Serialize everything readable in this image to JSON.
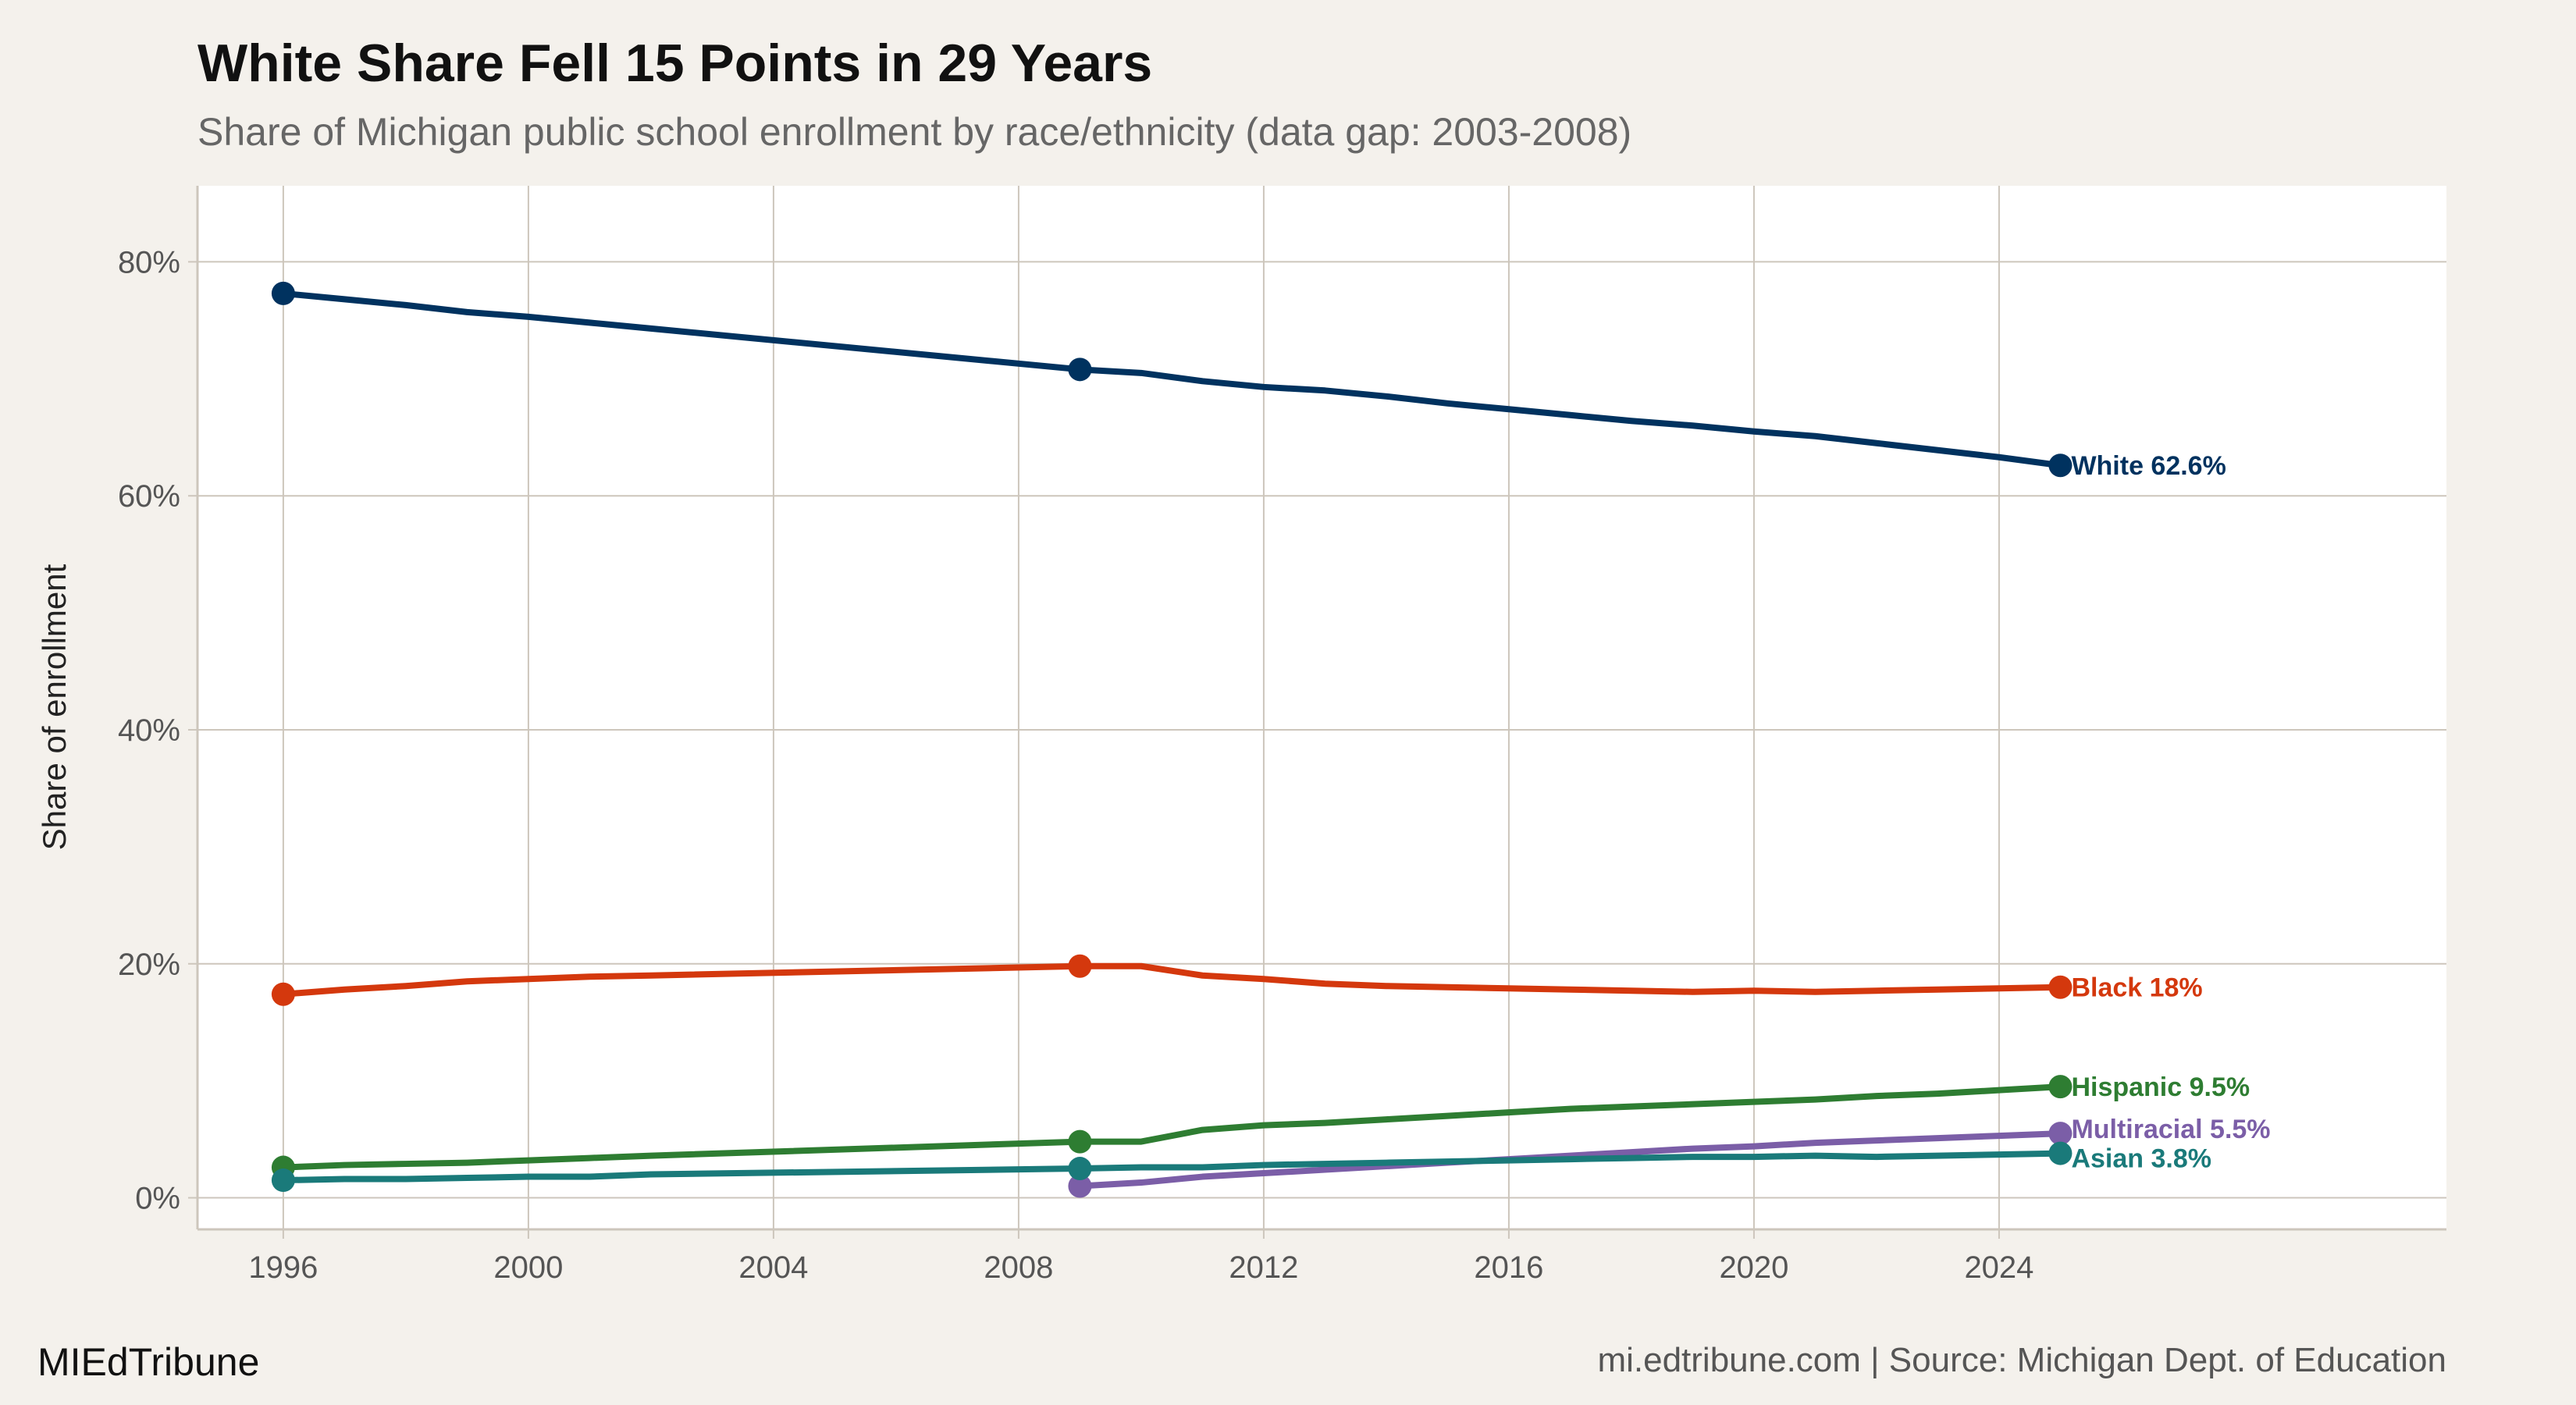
{
  "chart_data": {
    "type": "line",
    "title": "White Share Fell 15 Points in 29 Years",
    "subtitle": "Share of Michigan public school enrollment by race/ethnicity (data gap: 2003-2008)",
    "xlabel": "",
    "ylabel": "Share of enrollment",
    "xlim": [
      1994.6,
      2031.3
    ],
    "ylim": [
      -2.7,
      86.5
    ],
    "x_ticks": [
      1996,
      2000,
      2004,
      2008,
      2012,
      2016,
      2020,
      2024
    ],
    "y_ticks": [
      0,
      20,
      40,
      60,
      80
    ],
    "y_tick_labels": [
      "0%",
      "20%",
      "40%",
      "60%",
      "80%"
    ],
    "grid": true,
    "legend": "direct labels at line ends",
    "series": [
      {
        "name": "White",
        "end_label": "White 62.6%",
        "color": "#00325f",
        "x": [
          1996,
          1997,
          1998,
          1999,
          2000,
          2001,
          2002,
          2009,
          2010,
          2011,
          2012,
          2013,
          2014,
          2015,
          2016,
          2017,
          2018,
          2019,
          2020,
          2021,
          2022,
          2023,
          2024,
          2025
        ],
        "values": [
          77.3,
          76.8,
          76.3,
          75.7,
          75.3,
          74.8,
          74.3,
          70.8,
          70.5,
          69.8,
          69.3,
          69.0,
          68.5,
          67.9,
          67.4,
          66.9,
          66.4,
          66.0,
          65.5,
          65.1,
          64.5,
          63.9,
          63.3,
          62.6
        ],
        "markers": [
          1996,
          2009,
          2025
        ]
      },
      {
        "name": "Black",
        "end_label": "Black 18%",
        "color": "#d4380d",
        "x": [
          1996,
          1997,
          1998,
          1999,
          2000,
          2001,
          2002,
          2009,
          2010,
          2011,
          2012,
          2013,
          2014,
          2015,
          2016,
          2017,
          2018,
          2019,
          2020,
          2021,
          2022,
          2023,
          2024,
          2025
        ],
        "values": [
          17.4,
          17.8,
          18.1,
          18.5,
          18.7,
          18.9,
          19.0,
          19.8,
          19.8,
          19.0,
          18.7,
          18.3,
          18.1,
          18.0,
          17.9,
          17.8,
          17.7,
          17.6,
          17.7,
          17.6,
          17.7,
          17.8,
          17.9,
          18.0
        ],
        "markers": [
          1996,
          2009,
          2025
        ]
      },
      {
        "name": "Hispanic",
        "end_label": "Hispanic 9.5%",
        "color": "#2e7d32",
        "x": [
          1996,
          1997,
          1998,
          1999,
          2000,
          2001,
          2002,
          2009,
          2010,
          2011,
          2012,
          2013,
          2014,
          2015,
          2016,
          2017,
          2018,
          2019,
          2020,
          2021,
          2022,
          2023,
          2024,
          2025
        ],
        "values": [
          2.6,
          2.8,
          2.9,
          3.0,
          3.2,
          3.4,
          3.6,
          4.8,
          4.8,
          5.8,
          6.2,
          6.4,
          6.7,
          7.0,
          7.3,
          7.6,
          7.8,
          8.0,
          8.2,
          8.4,
          8.7,
          8.9,
          9.2,
          9.5
        ],
        "markers": [
          1996,
          2009,
          2025
        ]
      },
      {
        "name": "Multiracial",
        "end_label": "Multiracial 5.5%",
        "color": "#7b5ea7",
        "x": [
          2009,
          2010,
          2011,
          2012,
          2013,
          2014,
          2015,
          2016,
          2017,
          2018,
          2019,
          2020,
          2021,
          2022,
          2023,
          2024,
          2025
        ],
        "values": [
          1.0,
          1.3,
          1.8,
          2.1,
          2.4,
          2.7,
          3.0,
          3.3,
          3.6,
          3.9,
          4.2,
          4.4,
          4.7,
          4.9,
          5.1,
          5.3,
          5.5
        ],
        "markers": [
          2009,
          2025
        ]
      },
      {
        "name": "Asian",
        "end_label": "Asian 3.8%",
        "color": "#1a7a7a",
        "x": [
          1996,
          1997,
          1998,
          1999,
          2000,
          2001,
          2002,
          2009,
          2010,
          2011,
          2012,
          2013,
          2014,
          2015,
          2016,
          2017,
          2018,
          2019,
          2020,
          2021,
          2022,
          2023,
          2024,
          2025
        ],
        "values": [
          1.5,
          1.6,
          1.6,
          1.7,
          1.8,
          1.8,
          2.0,
          2.5,
          2.6,
          2.6,
          2.8,
          2.9,
          3.0,
          3.1,
          3.2,
          3.3,
          3.4,
          3.5,
          3.5,
          3.6,
          3.5,
          3.6,
          3.7,
          3.8
        ],
        "markers": [
          1996,
          2009,
          2025
        ]
      }
    ]
  },
  "footer": {
    "brand": "MIEdTribune",
    "source": "mi.edtribune.com | Source: Michigan Dept. of Education"
  }
}
